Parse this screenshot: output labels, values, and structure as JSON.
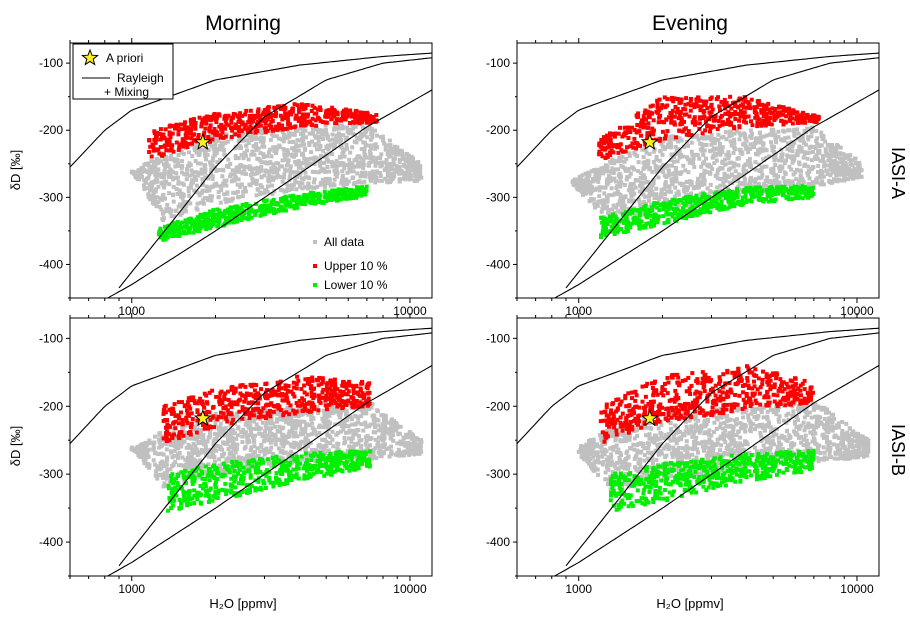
{
  "figure": {
    "col_titles": [
      "Morning",
      "Evening"
    ],
    "row_labels": [
      "IASI-A",
      "IASI-B"
    ],
    "xlabel": "H₂O [ppmv]",
    "ylabel": "δD [‰]",
    "legend_top": {
      "apriori": "A priori",
      "rayleigh": "Rayleigh",
      "mixing": "+ Mixing"
    },
    "legend_bottom": {
      "all": "All data",
      "upper": "Upper 10 %",
      "lower": "Lower 10 %"
    }
  },
  "chart_data": [
    {
      "type": "scatter",
      "title": "Morning",
      "row": "IASI-A",
      "xlabel": "",
      "ylabel": "δD [‰]",
      "xscale": "log",
      "xlim": [
        600,
        12000
      ],
      "ylim": [
        -450,
        -70
      ],
      "xticks": [
        1000,
        10000
      ],
      "yticks": [
        -100,
        -200,
        -300,
        -400
      ],
      "grid": false,
      "legend": "top-left and bottom-right",
      "colors": {
        "all": "#c0c0c0",
        "upper": "#ff0000",
        "lower": "#00ee00",
        "star": "#ffee22"
      },
      "apriori": {
        "x": 1800,
        "y": -218
      },
      "series": [
        {
          "name": "All data",
          "color": "#c0c0c0",
          "cloud": {
            "x0": 1000,
            "x1": 11000,
            "lower": [
              [
                1000,
                -260
              ],
              [
                1300,
                -335
              ],
              [
                2000,
                -310
              ],
              [
                4000,
                -288
              ],
              [
                7000,
                -280
              ],
              [
                11000,
                -275
              ]
            ],
            "upper": [
              [
                1000,
                -265
              ],
              [
                1300,
                -230
              ],
              [
                2000,
                -205
              ],
              [
                4000,
                -195
              ],
              [
                7000,
                -190
              ],
              [
                11000,
                -250
              ]
            ]
          }
        },
        {
          "name": "Upper 10 %",
          "color": "#ff0000",
          "cloud": {
            "x0": 1150,
            "x1": 7600,
            "lower": [
              [
                1150,
                -245
              ],
              [
                2000,
                -215
              ],
              [
                4000,
                -195
              ],
              [
                7600,
                -188
              ]
            ],
            "upper": [
              [
                1150,
                -200
              ],
              [
                2000,
                -175
              ],
              [
                4000,
                -160
              ],
              [
                7600,
                -175
              ]
            ]
          }
        },
        {
          "name": "Lower 10 %",
          "color": "#00ee00",
          "cloud": {
            "x0": 1250,
            "x1": 7000,
            "lower": [
              [
                1250,
                -365
              ],
              [
                2000,
                -345
              ],
              [
                4000,
                -315
              ],
              [
                7000,
                -298
              ]
            ],
            "upper": [
              [
                1250,
                -345
              ],
              [
                2000,
                -318
              ],
              [
                4000,
                -295
              ],
              [
                7000,
                -283
              ]
            ]
          }
        }
      ]
    },
    {
      "type": "scatter",
      "title": "Evening",
      "row": "IASI-A",
      "xlabel": "",
      "ylabel": "δD [‰]",
      "xscale": "log",
      "xlim": [
        600,
        12000
      ],
      "ylim": [
        -450,
        -70
      ],
      "xticks": [
        1000,
        10000
      ],
      "yticks": [
        -100,
        -200,
        -300,
        -400
      ],
      "grid": false,
      "apriori": {
        "x": 1800,
        "y": -218
      },
      "series": [
        {
          "name": "All data",
          "color": "#c0c0c0",
          "cloud": {
            "x0": 950,
            "x1": 10500,
            "lower": [
              [
                950,
                -280
              ],
              [
                1300,
                -340
              ],
              [
                2000,
                -320
              ],
              [
                4000,
                -295
              ],
              [
                7000,
                -285
              ],
              [
                10500,
                -270
              ]
            ],
            "upper": [
              [
                950,
                -275
              ],
              [
                1300,
                -245
              ],
              [
                2000,
                -210
              ],
              [
                4000,
                -200
              ],
              [
                7000,
                -195
              ],
              [
                10500,
                -250
              ]
            ]
          }
        },
        {
          "name": "Upper 10 %",
          "color": "#ff0000",
          "cloud": {
            "x0": 1180,
            "x1": 7300,
            "lower": [
              [
                1180,
                -245
              ],
              [
                2000,
                -215
              ],
              [
                4000,
                -195
              ],
              [
                7300,
                -188
              ]
            ],
            "upper": [
              [
                1180,
                -215
              ],
              [
                2000,
                -150
              ],
              [
                4000,
                -150
              ],
              [
                7300,
                -180
              ]
            ]
          }
        },
        {
          "name": "Lower 10 %",
          "color": "#00ee00",
          "cloud": {
            "x0": 1200,
            "x1": 7000,
            "lower": [
              [
                1200,
                -360
              ],
              [
                2000,
                -340
              ],
              [
                4000,
                -310
              ],
              [
                7000,
                -300
              ]
            ],
            "upper": [
              [
                1200,
                -330
              ],
              [
                2000,
                -305
              ],
              [
                4000,
                -285
              ],
              [
                7000,
                -283
              ]
            ]
          }
        }
      ]
    },
    {
      "type": "scatter",
      "title": "Morning",
      "row": "IASI-B",
      "xlabel": "H₂O [ppmv]",
      "ylabel": "δD [‰]",
      "xscale": "log",
      "xlim": [
        600,
        12000
      ],
      "ylim": [
        -450,
        -70
      ],
      "xticks": [
        1000,
        10000
      ],
      "yticks": [
        -100,
        -200,
        -300,
        -400
      ],
      "grid": false,
      "apriori": {
        "x": 1800,
        "y": -218
      },
      "series": [
        {
          "name": "All data",
          "color": "#c0c0c0",
          "cloud": {
            "x0": 1000,
            "x1": 11000,
            "lower": [
              [
                1000,
                -260
              ],
              [
                1300,
                -320
              ],
              [
                2000,
                -300
              ],
              [
                4000,
                -285
              ],
              [
                7000,
                -278
              ],
              [
                11000,
                -270
              ]
            ],
            "upper": [
              [
                1000,
                -265
              ],
              [
                1300,
                -235
              ],
              [
                2000,
                -210
              ],
              [
                4000,
                -200
              ],
              [
                7000,
                -190
              ],
              [
                11000,
                -250
              ]
            ]
          }
        },
        {
          "name": "Upper 10 %",
          "color": "#ff0000",
          "cloud": {
            "x0": 1300,
            "x1": 7200,
            "lower": [
              [
                1300,
                -255
              ],
              [
                2000,
                -230
              ],
              [
                4000,
                -210
              ],
              [
                7200,
                -200
              ]
            ],
            "upper": [
              [
                1300,
                -200
              ],
              [
                2000,
                -175
              ],
              [
                4000,
                -155
              ],
              [
                7200,
                -165
              ]
            ]
          }
        },
        {
          "name": "Lower 10 %",
          "color": "#00ee00",
          "cloud": {
            "x0": 1350,
            "x1": 7200,
            "lower": [
              [
                1350,
                -355
              ],
              [
                2000,
                -340
              ],
              [
                4000,
                -310
              ],
              [
                7200,
                -290
              ]
            ],
            "upper": [
              [
                1350,
                -300
              ],
              [
                2000,
                -285
              ],
              [
                4000,
                -270
              ],
              [
                7200,
                -265
              ]
            ]
          }
        }
      ]
    },
    {
      "type": "scatter",
      "title": "Evening",
      "row": "IASI-B",
      "xlabel": "H₂O [ppmv]",
      "ylabel": "δD [‰]",
      "xscale": "log",
      "xlim": [
        600,
        12000
      ],
      "ylim": [
        -450,
        -70
      ],
      "xticks": [
        1000,
        10000
      ],
      "yticks": [
        -100,
        -200,
        -300,
        -400
      ],
      "grid": false,
      "apriori": {
        "x": 1800,
        "y": -218
      },
      "series": [
        {
          "name": "All data",
          "color": "#c0c0c0",
          "cloud": {
            "x0": 1000,
            "x1": 11000,
            "lower": [
              [
                1000,
                -270
              ],
              [
                1300,
                -325
              ],
              [
                2000,
                -310
              ],
              [
                4000,
                -290
              ],
              [
                7000,
                -282
              ],
              [
                11000,
                -275
              ]
            ],
            "upper": [
              [
                1000,
                -260
              ],
              [
                1300,
                -230
              ],
              [
                2000,
                -210
              ],
              [
                4000,
                -200
              ],
              [
                7000,
                -190
              ],
              [
                11000,
                -250
              ]
            ]
          }
        },
        {
          "name": "Upper 10 %",
          "color": "#ff0000",
          "cloud": {
            "x0": 1200,
            "x1": 7000,
            "lower": [
              [
                1200,
                -255
              ],
              [
                2000,
                -225
              ],
              [
                4000,
                -205
              ],
              [
                7000,
                -195
              ]
            ],
            "upper": [
              [
                1200,
                -200
              ],
              [
                2000,
                -155
              ],
              [
                4000,
                -140
              ],
              [
                7000,
                -165
              ]
            ]
          }
        },
        {
          "name": "Lower 10 %",
          "color": "#00ee00",
          "cloud": {
            "x0": 1300,
            "x1": 7000,
            "lower": [
              [
                1300,
                -355
              ],
              [
                2000,
                -340
              ],
              [
                4000,
                -310
              ],
              [
                7000,
                -295
              ]
            ],
            "upper": [
              [
                1300,
                -300
              ],
              [
                2000,
                -285
              ],
              [
                4000,
                -270
              ],
              [
                7000,
                -265
              ]
            ]
          }
        }
      ]
    }
  ]
}
